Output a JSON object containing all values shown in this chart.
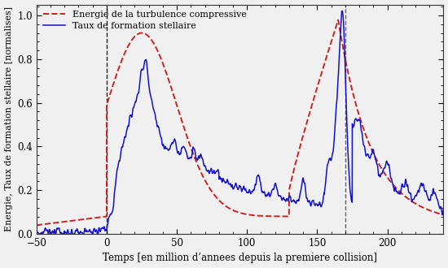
{
  "title": "",
  "xlabel": "Temps [en million d’annees depuis la premiere collision]",
  "ylabel": "Energie, Taux de formation stellaire [normalises]",
  "xlim": [
    -50,
    240
  ],
  "ylim": [
    0.0,
    1.05
  ],
  "xticks": [
    -50,
    0,
    50,
    100,
    150,
    200
  ],
  "yticks": [
    0.0,
    0.2,
    0.4,
    0.6,
    0.8,
    1.0
  ],
  "vline1": 0,
  "vline2": 170,
  "legend1": "Energie de la turbulence compressive",
  "legend2": "Taux de formation stellaire",
  "bg_color": "#f0f0f0",
  "line1_color": "#cc2222",
  "line2_color": "#1111cc",
  "vline1_color": "#222222",
  "vline2_color": "#666666",
  "figsize": [
    5.5,
    3.3
  ],
  "dpi": 100
}
